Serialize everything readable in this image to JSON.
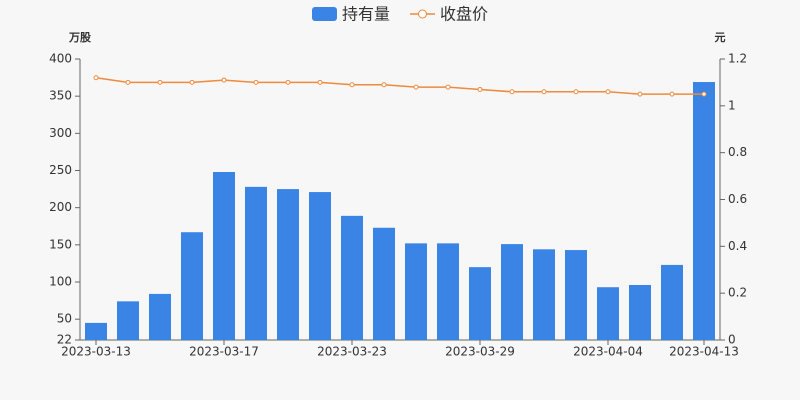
{
  "chart_data": {
    "type": "bar-line",
    "categories": [
      "2023-03-13",
      null,
      null,
      null,
      "2023-03-17",
      null,
      null,
      null,
      "2023-03-23",
      null,
      null,
      null,
      "2023-03-29",
      null,
      null,
      null,
      "2023-04-04",
      null,
      null,
      "2023-04-13"
    ],
    "y_unit": "万股",
    "y2_unit": "元",
    "series": [
      {
        "name": "持有量",
        "type": "bar",
        "color": "#3a84e6",
        "values": [
          45,
          74,
          84,
          167,
          248,
          228,
          225,
          221,
          189,
          173,
          152,
          152,
          120,
          151,
          144,
          143,
          93,
          96,
          123,
          369
        ]
      },
      {
        "name": "收盘价",
        "type": "line",
        "axis": "y2",
        "color": "#ee8a3c",
        "values": [
          1.12,
          1.1,
          1.1,
          1.1,
          1.11,
          1.1,
          1.1,
          1.1,
          1.09,
          1.09,
          1.08,
          1.08,
          1.07,
          1.06,
          1.06,
          1.06,
          1.06,
          1.05,
          1.05,
          1.05
        ]
      }
    ],
    "ylim": [
      22,
      400
    ],
    "yticks": [
      22,
      50,
      100,
      150,
      200,
      250,
      300,
      350,
      400
    ],
    "y2lim": [
      0,
      1.2
    ],
    "y2ticks": [
      0,
      0.2,
      0.4,
      0.6,
      0.8,
      1,
      1.2
    ],
    "legend": "top"
  }
}
